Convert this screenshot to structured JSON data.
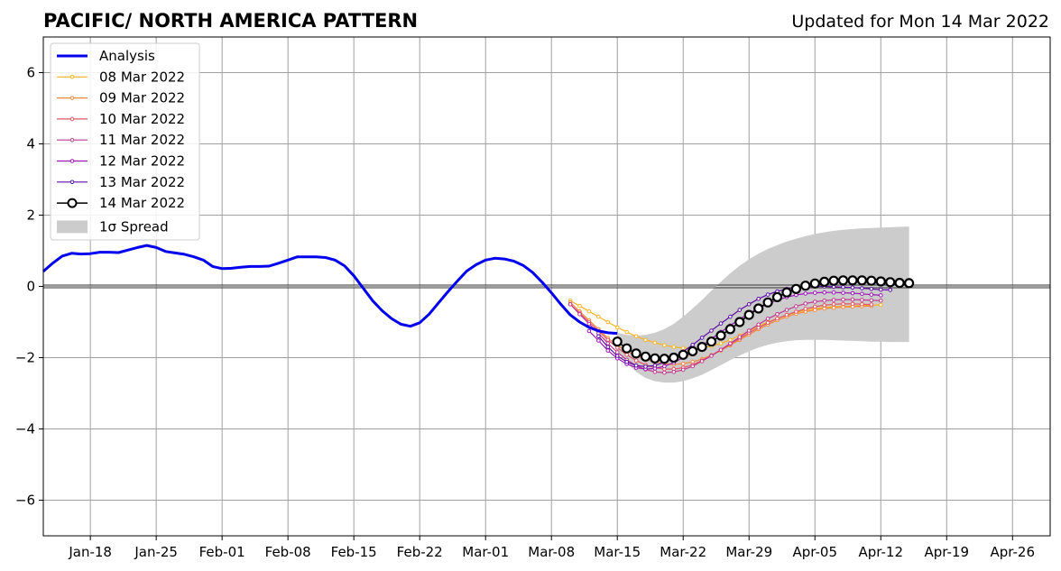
{
  "chart_data": {
    "type": "line",
    "title": "PACIFIC/ NORTH AMERICA PATTERN",
    "subtitle": "Updated for Mon 14 Mar 2022",
    "xlabel": "",
    "ylabel": "",
    "x_ticks": [
      "Jan-18",
      "Jan-25",
      "Feb-01",
      "Feb-08",
      "Feb-15",
      "Feb-22",
      "Mar-01",
      "Mar-08",
      "Mar-15",
      "Mar-22",
      "Mar-29",
      "Apr-05",
      "Apr-12",
      "Apr-19",
      "Apr-26"
    ],
    "xlim": [
      "2022-01-13",
      "2022-04-30"
    ],
    "ylim": [
      -7,
      7
    ],
    "y_ticks": [
      -6,
      -4,
      -2,
      0,
      2,
      4,
      6
    ],
    "grid": true,
    "legend_position": "top-left",
    "analysis": {
      "name": "Analysis",
      "color": "#0000ee",
      "start": "2022-01-13",
      "values": [
        0.42,
        0.65,
        0.85,
        0.93,
        0.91,
        0.92,
        0.96,
        0.96,
        0.95,
        1.02,
        1.09,
        1.15,
        1.09,
        0.98,
        0.94,
        0.9,
        0.83,
        0.74,
        0.56,
        0.5,
        0.51,
        0.54,
        0.56,
        0.56,
        0.57,
        0.65,
        0.74,
        0.83,
        0.83,
        0.83,
        0.81,
        0.74,
        0.58,
        0.3,
        -0.05,
        -0.4,
        -0.68,
        -0.9,
        -1.06,
        -1.12,
        -1.02,
        -0.78,
        -0.46,
        -0.15,
        0.15,
        0.43,
        0.61,
        0.74,
        0.79,
        0.77,
        0.71,
        0.59,
        0.39,
        0.12,
        -0.18,
        -0.5,
        -0.8,
        -1.0,
        -1.15,
        -1.25,
        -1.3,
        -1.32
      ]
    },
    "forecasts": [
      {
        "name": "08 Mar 2022",
        "color": "#f9b324",
        "start": "2022-03-10",
        "values": [
          -0.4,
          -0.55,
          -0.7,
          -0.85,
          -1.0,
          -1.15,
          -1.28,
          -1.4,
          -1.5,
          -1.58,
          -1.65,
          -1.7,
          -1.73,
          -1.74,
          -1.72,
          -1.68,
          -1.6,
          -1.5,
          -1.38,
          -1.25,
          -1.12,
          -1.0,
          -0.9,
          -0.81,
          -0.73,
          -0.67,
          -0.62,
          -0.59,
          -0.57,
          -0.56,
          -0.55,
          -0.54,
          -0.53,
          -0.52
        ]
      },
      {
        "name": "09 Mar 2022",
        "color": "#f28a3b",
        "start": "2022-03-10",
        "values": [
          -0.45,
          -0.7,
          -0.95,
          -1.2,
          -1.45,
          -1.65,
          -1.82,
          -1.95,
          -2.05,
          -2.12,
          -2.17,
          -2.19,
          -2.17,
          -2.12,
          -2.04,
          -1.93,
          -1.8,
          -1.65,
          -1.5,
          -1.35,
          -1.2,
          -1.07,
          -0.95,
          -0.85,
          -0.77,
          -0.71,
          -0.66,
          -0.62,
          -0.6,
          -0.58,
          -0.57,
          -0.56,
          -0.55
        ]
      },
      {
        "name": "10 Mar 2022",
        "color": "#e05566",
        "start": "2022-03-10",
        "values": [
          -0.5,
          -0.75,
          -1.0,
          -1.25,
          -1.5,
          -1.72,
          -1.92,
          -2.08,
          -2.2,
          -2.28,
          -2.32,
          -2.32,
          -2.28,
          -2.2,
          -2.08,
          -1.94,
          -1.78,
          -1.62,
          -1.46,
          -1.3,
          -1.16,
          -1.02,
          -0.9,
          -0.8,
          -0.71,
          -0.63,
          -0.57,
          -0.53,
          -0.5,
          -0.49,
          -0.49,
          -0.5,
          -0.51
        ]
      },
      {
        "name": "11 Mar 2022",
        "color": "#bf3a8f",
        "start": "2022-03-10",
        "values": [
          -0.5,
          -0.78,
          -1.05,
          -1.32,
          -1.6,
          -1.85,
          -2.06,
          -2.22,
          -2.33,
          -2.4,
          -2.42,
          -2.4,
          -2.34,
          -2.24,
          -2.1,
          -1.95,
          -1.78,
          -1.6,
          -1.42,
          -1.24,
          -1.07,
          -0.91,
          -0.78,
          -0.66,
          -0.56,
          -0.48,
          -0.43,
          -0.4,
          -0.38,
          -0.37,
          -0.37,
          -0.38,
          -0.39,
          -0.4
        ]
      },
      {
        "name": "12 Mar 2022",
        "color": "#9b17b6",
        "start": "2022-03-12",
        "values": [
          -1.25,
          -1.52,
          -1.8,
          -2.02,
          -2.18,
          -2.28,
          -2.32,
          -2.3,
          -2.24,
          -2.14,
          -2.0,
          -1.84,
          -1.66,
          -1.47,
          -1.28,
          -1.1,
          -0.92,
          -0.76,
          -0.61,
          -0.49,
          -0.38,
          -0.3,
          -0.24,
          -0.2,
          -0.18,
          -0.17,
          -0.17,
          -0.18,
          -0.19,
          -0.21,
          -0.23,
          -0.25
        ]
      },
      {
        "name": "13 Mar 2022",
        "color": "#5e0fa5",
        "start": "2022-03-13",
        "values": [
          -1.4,
          -1.7,
          -1.95,
          -2.12,
          -2.22,
          -2.25,
          -2.22,
          -2.13,
          -2.0,
          -1.83,
          -1.64,
          -1.44,
          -1.24,
          -1.04,
          -0.85,
          -0.66,
          -0.5,
          -0.35,
          -0.23,
          -0.14,
          -0.07,
          -0.03,
          -0.01,
          0.0,
          0.0,
          -0.01,
          -0.02,
          -0.03,
          -0.05,
          -0.07,
          -0.09,
          -0.1
        ]
      },
      {
        "name": "14 Mar 2022",
        "color": "#000000",
        "start": "2022-03-15",
        "values": [
          -1.55,
          -1.74,
          -1.88,
          -1.97,
          -2.02,
          -2.03,
          -2.0,
          -1.92,
          -1.82,
          -1.7,
          -1.55,
          -1.38,
          -1.2,
          -1.0,
          -0.8,
          -0.62,
          -0.45,
          -0.3,
          -0.17,
          -0.07,
          0.02,
          0.08,
          0.13,
          0.16,
          0.17,
          0.17,
          0.17,
          0.16,
          0.14,
          0.12,
          0.1,
          0.09
        ]
      }
    ],
    "spread": {
      "name": "1σ Spread",
      "color": "#cccccc",
      "start": "2022-03-15",
      "upper": [
        -1.3,
        -1.36,
        -1.38,
        -1.36,
        -1.3,
        -1.2,
        -1.05,
        -0.85,
        -0.62,
        -0.38,
        -0.12,
        0.13,
        0.37,
        0.58,
        0.76,
        0.92,
        1.05,
        1.16,
        1.26,
        1.34,
        1.41,
        1.47,
        1.52,
        1.56,
        1.59,
        1.61,
        1.63,
        1.64,
        1.65,
        1.66,
        1.67,
        1.68
      ],
      "lower": [
        -1.8,
        -2.15,
        -2.4,
        -2.57,
        -2.66,
        -2.7,
        -2.7,
        -2.66,
        -2.58,
        -2.48,
        -2.35,
        -2.21,
        -2.07,
        -1.94,
        -1.82,
        -1.72,
        -1.64,
        -1.58,
        -1.54,
        -1.51,
        -1.5,
        -1.5,
        -1.5,
        -1.51,
        -1.52,
        -1.53,
        -1.54,
        -1.55,
        -1.55,
        -1.56,
        -1.56,
        -1.56
      ]
    }
  }
}
